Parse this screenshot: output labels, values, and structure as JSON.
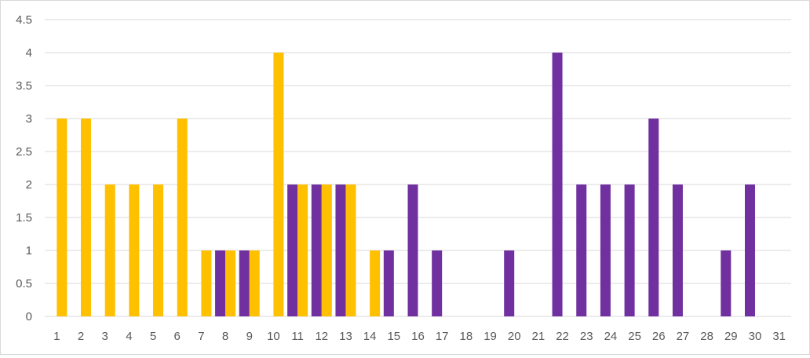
{
  "chart_data": {
    "type": "bar",
    "categories": [
      "1",
      "2",
      "3",
      "4",
      "5",
      "6",
      "7",
      "8",
      "9",
      "10",
      "11",
      "12",
      "13",
      "14",
      "15",
      "16",
      "17",
      "18",
      "19",
      "20",
      "21",
      "22",
      "23",
      "24",
      "25",
      "26",
      "27",
      "28",
      "29",
      "30",
      "31"
    ],
    "series": [
      {
        "color": "#7030A0",
        "values": [
          0,
          0,
          0,
          0,
          0,
          0,
          0,
          1,
          1,
          0,
          2,
          2,
          2,
          0,
          1,
          2,
          1,
          0,
          0,
          1,
          0,
          4,
          2,
          2,
          2,
          3,
          2,
          0,
          1,
          2,
          0
        ]
      },
      {
        "color": "#FFC000",
        "values": [
          3,
          3,
          2,
          2,
          2,
          3,
          1,
          1,
          1,
          4,
          2,
          2,
          2,
          1,
          0,
          0,
          0,
          0,
          0,
          0,
          0,
          0,
          0,
          0,
          0,
          0,
          0,
          0,
          0,
          0,
          0
        ]
      }
    ],
    "ylim": [
      0,
      4.5
    ],
    "yticks": [
      "0",
      "0.5",
      "1",
      "1.5",
      "2",
      "2.5",
      "3",
      "3.5",
      "4",
      "4.5"
    ],
    "title": "",
    "xlabel": "",
    "ylabel": "",
    "grid": "horizontal",
    "legend": "none"
  }
}
